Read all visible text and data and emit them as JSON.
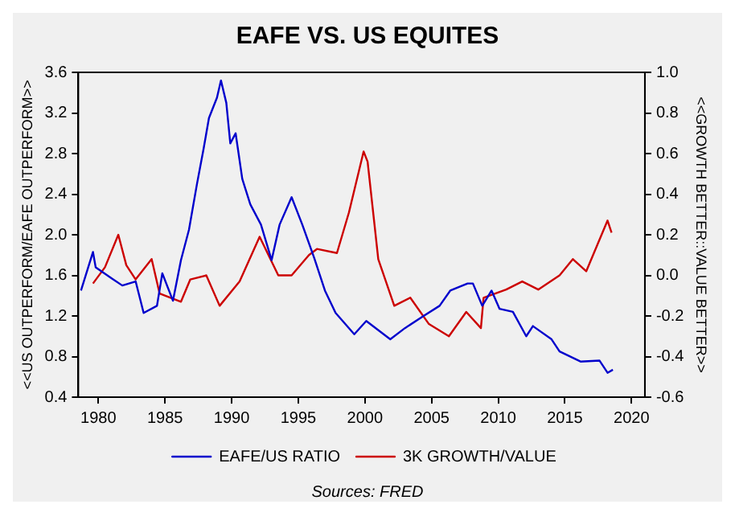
{
  "chart_data": {
    "type": "line",
    "title": "EAFE VS. US EQUITES",
    "ylabel": "<<US OUTPERFORM/EAFE OUTPERFORM>>",
    "y2label": "<<GROWTH BETTER::VALUE BETTER>>",
    "annotations": [
      "Sources: FRED"
    ],
    "xlim": [
      1978.5,
      2021
    ],
    "xticks": [
      1980,
      1985,
      1990,
      1995,
      2000,
      2005,
      2010,
      2015,
      2020
    ],
    "ylim": [
      0.4,
      3.6
    ],
    "yticks": [
      {
        "value": 0.4,
        "label": "0.4"
      },
      {
        "value": 0.8,
        "label": "0.8"
      },
      {
        "value": 1.2,
        "label": "1.2"
      },
      {
        "value": 1.6,
        "label": "1.6"
      },
      {
        "value": 2.0,
        "label": "2.0"
      },
      {
        "value": 2.4,
        "label": "2.4"
      },
      {
        "value": 2.8,
        "label": "2.8"
      },
      {
        "value": 3.2,
        "label": "3.2"
      },
      {
        "value": 3.6,
        "label": "3.6"
      }
    ],
    "y2lim": [
      -0.6,
      1.0
    ],
    "y2ticks": [
      {
        "value": -0.6,
        "label": "-0.6"
      },
      {
        "value": -0.4,
        "label": "-0.4"
      },
      {
        "value": -0.2,
        "label": "-0.2"
      },
      {
        "value": 0,
        "label": "0.0"
      },
      {
        "value": 0.2,
        "label": "0.2"
      },
      {
        "value": 0.4,
        "label": "0.4"
      },
      {
        "value": 0.6,
        "label": "0.6"
      },
      {
        "value": 0.8,
        "label": "0.8"
      },
      {
        "value": 1.0,
        "label": "1.0"
      }
    ],
    "grid": false,
    "legend": "bottom",
    "marker": "none",
    "line_style": "solid",
    "series": [
      {
        "name": "EAFE/US RATIO",
        "color": "#0000cc",
        "x": [
          1978.7,
          1979.6,
          1979.8,
          1981.0,
          1981.8,
          1982.8,
          1983.4,
          1984.4,
          1984.8,
          1985.6,
          1986.2,
          1986.8,
          1987.4,
          1987.9,
          1988.3,
          1988.9,
          1989.2,
          1989.6,
          1989.9,
          1990.3,
          1990.8,
          1991.4,
          1992.2,
          1993.0,
          1993.6,
          1994.5,
          1995.3,
          1996.2,
          1997.0,
          1997.8,
          1999.2,
          2000.1,
          2001.9,
          2003.0,
          2004.4,
          2005.6,
          2006.4,
          2007.7,
          2008.1,
          2008.8,
          2009.5,
          2010.1,
          2011.1,
          2012.1,
          2012.6,
          2014.0,
          2014.6,
          2016.2,
          2017.6,
          2018.2,
          2018.6
        ],
        "values": [
          1.45,
          1.83,
          1.68,
          1.57,
          1.5,
          1.54,
          1.23,
          1.3,
          1.62,
          1.35,
          1.75,
          2.05,
          2.5,
          2.85,
          3.15,
          3.35,
          3.52,
          3.3,
          2.9,
          3.0,
          2.55,
          2.3,
          2.1,
          1.75,
          2.1,
          2.37,
          2.1,
          1.77,
          1.45,
          1.23,
          1.02,
          1.15,
          0.97,
          1.08,
          1.2,
          1.3,
          1.45,
          1.52,
          1.52,
          1.3,
          1.45,
          1.27,
          1.24,
          1.0,
          1.1,
          0.97,
          0.85,
          0.75,
          0.76,
          0.64,
          0.67
        ]
      },
      {
        "name": "3K GROWTH/VALUE",
        "color": "#cc0000",
        "axis": "y2",
        "x": [
          1979.6,
          1980.5,
          1981.5,
          1982.1,
          1982.8,
          1984.0,
          1984.6,
          1986.2,
          1986.9,
          1988.1,
          1989.1,
          1990.6,
          1992.1,
          1993.5,
          1994.5,
          1995.8,
          1996.4,
          1997.9,
          1998.8,
          1999.9,
          2000.2,
          2001.0,
          2002.2,
          2003.4,
          2004.8,
          2006.3,
          2007.6,
          2008.7,
          2008.9,
          2010.6,
          2011.8,
          2013.0,
          2014.6,
          2015.6,
          2016.6,
          2018.2,
          2018.5
        ],
        "values": [
          -0.04,
          0.04,
          0.2,
          0.05,
          -0.02,
          0.08,
          -0.09,
          -0.13,
          -0.02,
          0.0,
          -0.15,
          -0.03,
          0.19,
          0.0,
          0.0,
          0.1,
          0.13,
          0.11,
          0.31,
          0.61,
          0.56,
          0.08,
          -0.15,
          -0.11,
          -0.24,
          -0.3,
          -0.18,
          -0.26,
          -0.11,
          -0.07,
          -0.03,
          -0.07,
          0.0,
          0.08,
          0.02,
          0.27,
          0.21
        ]
      }
    ]
  }
}
